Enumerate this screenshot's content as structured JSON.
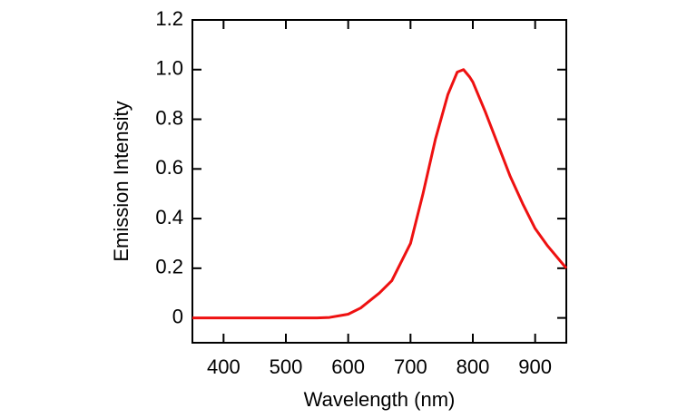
{
  "chart_data": {
    "type": "line",
    "x_label": "Wavelength (nm)",
    "y_label": "Emission Intensity",
    "x": [
      350,
      400,
      450,
      500,
      550,
      570,
      600,
      620,
      650,
      670,
      700,
      720,
      740,
      760,
      775,
      785,
      795,
      800,
      820,
      840,
      860,
      880,
      900,
      920,
      940,
      950
    ],
    "series": [
      {
        "color": "#ee1111",
        "values": [
          0,
          0,
          0,
          0,
          0,
          0.002,
          0.015,
          0.04,
          0.1,
          0.15,
          0.3,
          0.5,
          0.72,
          0.9,
          0.99,
          1.0,
          0.97,
          0.95,
          0.83,
          0.7,
          0.57,
          0.46,
          0.36,
          0.29,
          0.23,
          0.2
        ]
      }
    ],
    "xlim": [
      350,
      950
    ],
    "xticks": [
      400,
      500,
      600,
      700,
      800,
      900
    ],
    "ylim": [
      -0.1,
      1.2
    ],
    "yticks": [
      0,
      0.2,
      0.4,
      0.6,
      0.8,
      {
        "value": 1,
        "label": "1.0"
      },
      1.2
    ]
  }
}
